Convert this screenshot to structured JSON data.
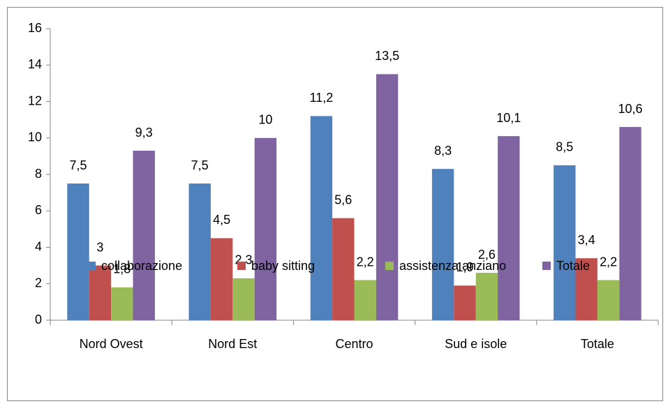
{
  "chart_data": {
    "type": "bar",
    "categories": [
      "Nord Ovest",
      "Nord Est",
      "Centro",
      "Sud e isole",
      "Totale"
    ],
    "series": [
      {
        "name": "collaborazione",
        "color": "#4f81bd",
        "values": [
          7.5,
          7.5,
          11.2,
          8.3,
          8.5
        ],
        "value_labels": [
          "7,5",
          "7,5",
          "11,2",
          "8,3",
          "8,5"
        ]
      },
      {
        "name": "baby sitting",
        "color": "#c0504d",
        "values": [
          3,
          4.5,
          5.6,
          1.9,
          3.4
        ],
        "value_labels": [
          "3",
          "4,5",
          "5,6",
          "1,9",
          "3,4"
        ]
      },
      {
        "name": "assistenza anziano",
        "color": "#9bbb59",
        "values": [
          1.8,
          2.3,
          2.2,
          2.6,
          2.2
        ],
        "value_labels": [
          "1,8",
          "2,3",
          "2,2",
          "2,6",
          "2,2"
        ]
      },
      {
        "name": "Totale",
        "color": "#8064a2",
        "values": [
          9.3,
          10,
          13.5,
          10.1,
          10.6
        ],
        "value_labels": [
          "9,3",
          "10",
          "13,5",
          "10,1",
          "10,6"
        ]
      }
    ],
    "ylim": [
      0,
      16
    ],
    "yticks": [
      0,
      2,
      4,
      6,
      8,
      10,
      12,
      14,
      16
    ],
    "legend": "bottom"
  }
}
